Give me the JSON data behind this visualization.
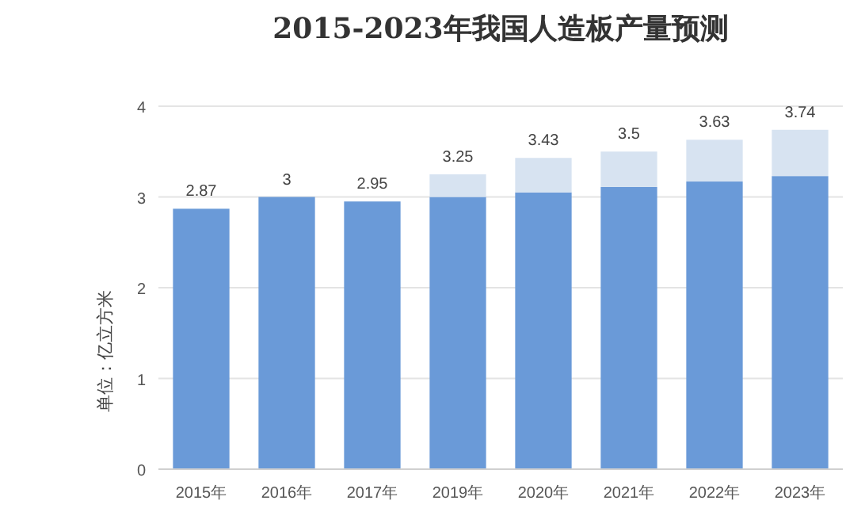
{
  "chart_data": {
    "type": "bar",
    "title": "2015-2023年我国人造板产量预测",
    "ylabel": "单位：亿立方米",
    "categories": [
      "2015年",
      "2016年",
      "2017年",
      "2019年",
      "2020年",
      "2021年",
      "2022年",
      "2023年"
    ],
    "stacked": true,
    "series": [
      {
        "color": "#6a9ad8",
        "values": [
          2.87,
          3,
          2.95,
          3.0,
          3.05,
          3.11,
          3.17,
          3.23
        ]
      },
      {
        "color": "#d7e3f1",
        "values": [
          null,
          null,
          null,
          0.25,
          0.38,
          0.39,
          0.46,
          0.51
        ]
      }
    ],
    "totals": [
      "2.87",
      "3",
      "2.95",
      "3.25",
      "3.43",
      "3.5",
      "3.63",
      "3.74"
    ],
    "ylim": [
      0,
      4
    ],
    "yticks": [
      0,
      1,
      2,
      3,
      4
    ],
    "grid": "y"
  }
}
